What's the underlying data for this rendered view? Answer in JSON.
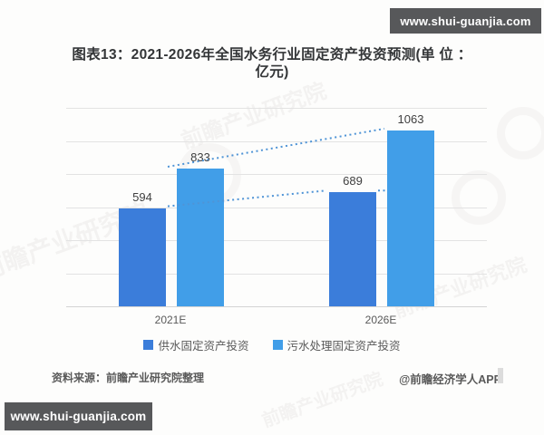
{
  "site_banner": {
    "top": "www.shui-guanjia.com",
    "bottom": "www.shui-guanjia.com"
  },
  "chart_data": {
    "type": "bar",
    "title": "图表13：2021-2026年全国水务行业固定资产投资预测(单 位 ：亿元)",
    "title_lines": [
      "图表13：2021-2026年全国水务行业固定资产投资预测(单 位 ：",
      "亿元)"
    ],
    "unit": "亿元",
    "categories": [
      "2021E",
      "2026E"
    ],
    "series": [
      {
        "name": "供水固定资产投资",
        "color": "#3b7dda",
        "values": [
          594,
          689
        ]
      },
      {
        "name": "污水处理固定资产投资",
        "color": "#419ee8",
        "values": [
          833,
          1063
        ]
      }
    ],
    "data_labels": [
      [
        "594",
        "689"
      ],
      [
        "833",
        "1063"
      ]
    ],
    "ylim": [
      0,
      1200
    ],
    "grid_step": 200,
    "y_axis_labels_visible": false,
    "grid": true,
    "legend_position": "bottom",
    "trendlines": {
      "style": "dotted",
      "color": "#4f94d6",
      "connects": "same-series bar tops across categories"
    }
  },
  "footer": {
    "source": "资料来源：前瞻产业研究院整理",
    "credit": "@前瞻经济学人APP"
  },
  "watermark": {
    "text": "前瞻产业研究院"
  },
  "colors": {
    "banner_bg": "#57585a",
    "banner_text": "#ffffff",
    "background": "#fdfdfc",
    "title_text": "#333537",
    "grid_line": "#e3e3e3",
    "axis_line": "#d4d4d4",
    "value_label": "#3f3f3f",
    "text_secondary": "#595959"
  }
}
